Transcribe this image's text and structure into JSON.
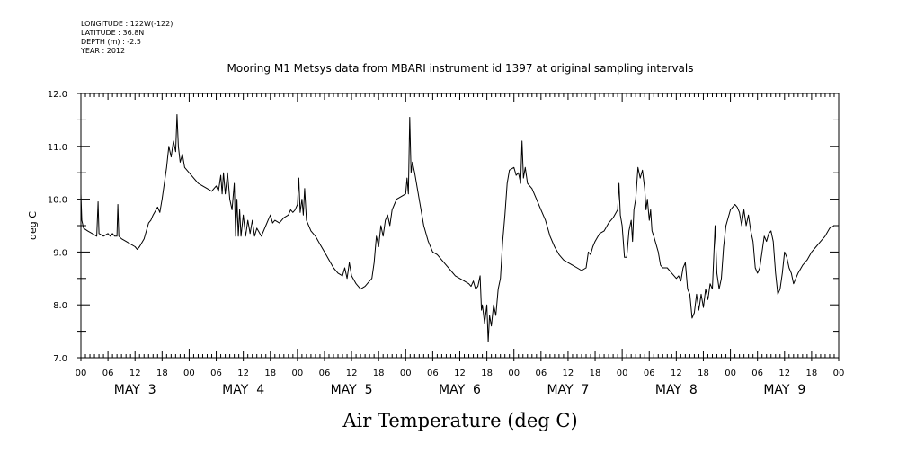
{
  "header": {
    "longitude": "LONGITUDE : 122W(-122)",
    "latitude": "LATITUDE : 36.8N",
    "depth": "DEPTH (m) : -2.5",
    "year": "YEAR : 2012"
  },
  "chart_data": {
    "type": "line",
    "title": "Mooring M1 Metsys data from MBARI instrument id 1397 at original sampling intervals",
    "xlabel": "Air Temperature (deg C)",
    "ylabel": "deg C",
    "ylim": [
      7.0,
      12.0
    ],
    "yticks": [
      "7.0",
      "8.0",
      "9.0",
      "10.0",
      "11.0",
      "12.0"
    ],
    "xlim_hours": [
      0,
      168
    ],
    "xtick_labels": [
      "00",
      "06",
      "12",
      "18",
      "00",
      "06",
      "12",
      "18",
      "00",
      "06",
      "12",
      "18",
      "00",
      "06",
      "12",
      "18",
      "00",
      "06",
      "12",
      "18",
      "00",
      "06",
      "12",
      "18",
      "00",
      "06",
      "12",
      "18",
      "00"
    ],
    "day_labels": [
      "MAY  3",
      "MAY  4",
      "MAY  5",
      "MAY  6",
      "MAY  7",
      "MAY  8",
      "MAY  9"
    ],
    "grid": false,
    "series": [
      {
        "color": "#000000",
        "points": [
          [
            0,
            10.1
          ],
          [
            0.2,
            9.6
          ],
          [
            0.6,
            9.45
          ],
          [
            1.5,
            9.4
          ],
          [
            2.5,
            9.35
          ],
          [
            3.5,
            9.3
          ],
          [
            3.8,
            9.95
          ],
          [
            4,
            9.35
          ],
          [
            5,
            9.3
          ],
          [
            6,
            9.35
          ],
          [
            6.5,
            9.3
          ],
          [
            7,
            9.35
          ],
          [
            7.5,
            9.3
          ],
          [
            8,
            9.3
          ],
          [
            8.2,
            9.9
          ],
          [
            8.4,
            9.3
          ],
          [
            9,
            9.25
          ],
          [
            10,
            9.2
          ],
          [
            11,
            9.15
          ],
          [
            12,
            9.1
          ],
          [
            12.5,
            9.05
          ],
          [
            13,
            9.1
          ],
          [
            14,
            9.25
          ],
          [
            15,
            9.55
          ],
          [
            15.5,
            9.6
          ],
          [
            16,
            9.7
          ],
          [
            17,
            9.85
          ],
          [
            17.5,
            9.75
          ],
          [
            18,
            10.0
          ],
          [
            19,
            10.6
          ],
          [
            19.5,
            11.0
          ],
          [
            20,
            10.8
          ],
          [
            20.5,
            11.1
          ],
          [
            21,
            10.9
          ],
          [
            21.3,
            11.6
          ],
          [
            21.6,
            11.0
          ],
          [
            22,
            10.7
          ],
          [
            22.5,
            10.85
          ],
          [
            23,
            10.6
          ],
          [
            24,
            10.5
          ],
          [
            25,
            10.4
          ],
          [
            26,
            10.3
          ],
          [
            27,
            10.25
          ],
          [
            28,
            10.2
          ],
          [
            29,
            10.15
          ],
          [
            29.5,
            10.2
          ],
          [
            30,
            10.25
          ],
          [
            30.5,
            10.15
          ],
          [
            31,
            10.45
          ],
          [
            31.3,
            10.1
          ],
          [
            31.6,
            10.5
          ],
          [
            32,
            10.1
          ],
          [
            32.5,
            10.5
          ],
          [
            33,
            10.0
          ],
          [
            33.5,
            9.8
          ],
          [
            34,
            10.3
          ],
          [
            34.3,
            9.3
          ],
          [
            34.6,
            10.0
          ],
          [
            34.9,
            9.3
          ],
          [
            35.2,
            9.8
          ],
          [
            35.5,
            9.3
          ],
          [
            36,
            9.7
          ],
          [
            36.5,
            9.3
          ],
          [
            37,
            9.6
          ],
          [
            37.5,
            9.35
          ],
          [
            38,
            9.6
          ],
          [
            38.5,
            9.3
          ],
          [
            39,
            9.45
          ],
          [
            40,
            9.3
          ],
          [
            40.5,
            9.4
          ],
          [
            41,
            9.5
          ],
          [
            41.5,
            9.6
          ],
          [
            42,
            9.7
          ],
          [
            42.5,
            9.55
          ],
          [
            43,
            9.6
          ],
          [
            44,
            9.55
          ],
          [
            45,
            9.65
          ],
          [
            46,
            9.7
          ],
          [
            46.5,
            9.8
          ],
          [
            47,
            9.75
          ],
          [
            47.5,
            9.8
          ],
          [
            48,
            9.9
          ],
          [
            48.3,
            10.4
          ],
          [
            48.6,
            9.75
          ],
          [
            49,
            10.0
          ],
          [
            49.3,
            9.7
          ],
          [
            49.6,
            10.2
          ],
          [
            50,
            9.6
          ],
          [
            51,
            9.4
          ],
          [
            52,
            9.3
          ],
          [
            53,
            9.15
          ],
          [
            54,
            9.0
          ],
          [
            55,
            8.85
          ],
          [
            56,
            8.7
          ],
          [
            57,
            8.6
          ],
          [
            58,
            8.55
          ],
          [
            58.5,
            8.7
          ],
          [
            59,
            8.5
          ],
          [
            59.5,
            8.8
          ],
          [
            60,
            8.55
          ],
          [
            61,
            8.4
          ],
          [
            62,
            8.3
          ],
          [
            63,
            8.35
          ],
          [
            64,
            8.45
          ],
          [
            64.5,
            8.5
          ],
          [
            65,
            8.8
          ],
          [
            65.5,
            9.3
          ],
          [
            66,
            9.1
          ],
          [
            66.5,
            9.5
          ],
          [
            67,
            9.3
          ],
          [
            67.5,
            9.6
          ],
          [
            68,
            9.7
          ],
          [
            68.5,
            9.5
          ],
          [
            69,
            9.8
          ],
          [
            69.5,
            9.9
          ],
          [
            70,
            10.0
          ],
          [
            71,
            10.05
          ],
          [
            72,
            10.1
          ],
          [
            72.3,
            10.4
          ],
          [
            72.6,
            10.1
          ],
          [
            72.9,
            11.55
          ],
          [
            73.2,
            10.5
          ],
          [
            73.5,
            10.7
          ],
          [
            74,
            10.5
          ],
          [
            75,
            10.0
          ],
          [
            76,
            9.5
          ],
          [
            77,
            9.2
          ],
          [
            78,
            9.0
          ],
          [
            79,
            8.95
          ],
          [
            80,
            8.85
          ],
          [
            81,
            8.75
          ],
          [
            82,
            8.65
          ],
          [
            83,
            8.55
          ],
          [
            84,
            8.5
          ],
          [
            85,
            8.45
          ],
          [
            86,
            8.4
          ],
          [
            86.5,
            8.35
          ],
          [
            87,
            8.45
          ],
          [
            87.5,
            8.3
          ],
          [
            88,
            8.35
          ],
          [
            88.5,
            8.55
          ],
          [
            88.8,
            7.9
          ],
          [
            89,
            8.0
          ],
          [
            89.5,
            7.65
          ],
          [
            90,
            8.0
          ],
          [
            90.3,
            7.3
          ],
          [
            90.6,
            7.8
          ],
          [
            91,
            7.6
          ],
          [
            91.5,
            8.0
          ],
          [
            92,
            7.8
          ],
          [
            92.5,
            8.3
          ],
          [
            93,
            8.5
          ],
          [
            93.5,
            9.2
          ],
          [
            94,
            9.7
          ],
          [
            94.5,
            10.3
          ],
          [
            95,
            10.55
          ],
          [
            96,
            10.6
          ],
          [
            96.5,
            10.45
          ],
          [
            97,
            10.5
          ],
          [
            97.5,
            10.3
          ],
          [
            97.8,
            11.1
          ],
          [
            98.1,
            10.4
          ],
          [
            98.5,
            10.6
          ],
          [
            99,
            10.3
          ],
          [
            100,
            10.2
          ],
          [
            101,
            10.0
          ],
          [
            102,
            9.8
          ],
          [
            103,
            9.6
          ],
          [
            104,
            9.3
          ],
          [
            105,
            9.1
          ],
          [
            106,
            8.95
          ],
          [
            107,
            8.85
          ],
          [
            108,
            8.8
          ],
          [
            109,
            8.75
          ],
          [
            110,
            8.7
          ],
          [
            111,
            8.65
          ],
          [
            112,
            8.7
          ],
          [
            112.5,
            9.0
          ],
          [
            113,
            8.95
          ],
          [
            113.5,
            9.1
          ],
          [
            114,
            9.2
          ],
          [
            115,
            9.35
          ],
          [
            116,
            9.4
          ],
          [
            117,
            9.55
          ],
          [
            118,
            9.65
          ],
          [
            119,
            9.8
          ],
          [
            119.3,
            10.3
          ],
          [
            119.6,
            9.7
          ],
          [
            120,
            9.5
          ],
          [
            120.5,
            8.9
          ],
          [
            121,
            8.9
          ],
          [
            121.5,
            9.4
          ],
          [
            122,
            9.6
          ],
          [
            122.3,
            9.2
          ],
          [
            122.6,
            9.8
          ],
          [
            123,
            10.0
          ],
          [
            123.5,
            10.6
          ],
          [
            124,
            10.4
          ],
          [
            124.5,
            10.55
          ],
          [
            125,
            10.2
          ],
          [
            125.3,
            9.8
          ],
          [
            125.6,
            10.0
          ],
          [
            126,
            9.6
          ],
          [
            126.3,
            9.8
          ],
          [
            126.6,
            9.4
          ],
          [
            127,
            9.3
          ],
          [
            128,
            9.0
          ],
          [
            128.5,
            8.75
          ],
          [
            129,
            8.7
          ],
          [
            130,
            8.7
          ],
          [
            131,
            8.6
          ],
          [
            132,
            8.5
          ],
          [
            132.5,
            8.55
          ],
          [
            133,
            8.45
          ],
          [
            133.5,
            8.7
          ],
          [
            134,
            8.8
          ],
          [
            134.5,
            8.3
          ],
          [
            135,
            8.2
          ],
          [
            135.5,
            7.75
          ],
          [
            136,
            7.85
          ],
          [
            136.5,
            8.2
          ],
          [
            137,
            7.9
          ],
          [
            137.5,
            8.2
          ],
          [
            138,
            7.95
          ],
          [
            138.5,
            8.3
          ],
          [
            139,
            8.1
          ],
          [
            139.5,
            8.4
          ],
          [
            140,
            8.3
          ],
          [
            140.3,
            8.9
          ],
          [
            140.6,
            9.5
          ],
          [
            141,
            8.6
          ],
          [
            141.5,
            8.3
          ],
          [
            142,
            8.5
          ],
          [
            142.5,
            9.1
          ],
          [
            143,
            9.5
          ],
          [
            144,
            9.8
          ],
          [
            145,
            9.9
          ],
          [
            145.5,
            9.85
          ],
          [
            146,
            9.75
          ],
          [
            146.5,
            9.5
          ],
          [
            147,
            9.8
          ],
          [
            147.5,
            9.5
          ],
          [
            148,
            9.7
          ],
          [
            148.5,
            9.4
          ],
          [
            149,
            9.2
          ],
          [
            149.5,
            8.7
          ],
          [
            150,
            8.6
          ],
          [
            150.5,
            8.7
          ],
          [
            151,
            9.0
          ],
          [
            151.5,
            9.3
          ],
          [
            152,
            9.2
          ],
          [
            152.5,
            9.35
          ],
          [
            153,
            9.4
          ],
          [
            153.5,
            9.2
          ],
          [
            154,
            8.6
          ],
          [
            154.5,
            8.2
          ],
          [
            155,
            8.3
          ],
          [
            155.5,
            8.6
          ],
          [
            156,
            9.0
          ],
          [
            156.5,
            8.9
          ],
          [
            157,
            8.7
          ],
          [
            157.5,
            8.6
          ],
          [
            158,
            8.4
          ],
          [
            158.5,
            8.5
          ],
          [
            159,
            8.6
          ],
          [
            160,
            8.75
          ],
          [
            161,
            8.85
          ],
          [
            162,
            9.0
          ],
          [
            163,
            9.1
          ],
          [
            164,
            9.2
          ],
          [
            165,
            9.3
          ],
          [
            166,
            9.45
          ],
          [
            167,
            9.5
          ],
          [
            168,
            9.5
          ]
        ]
      }
    ]
  }
}
